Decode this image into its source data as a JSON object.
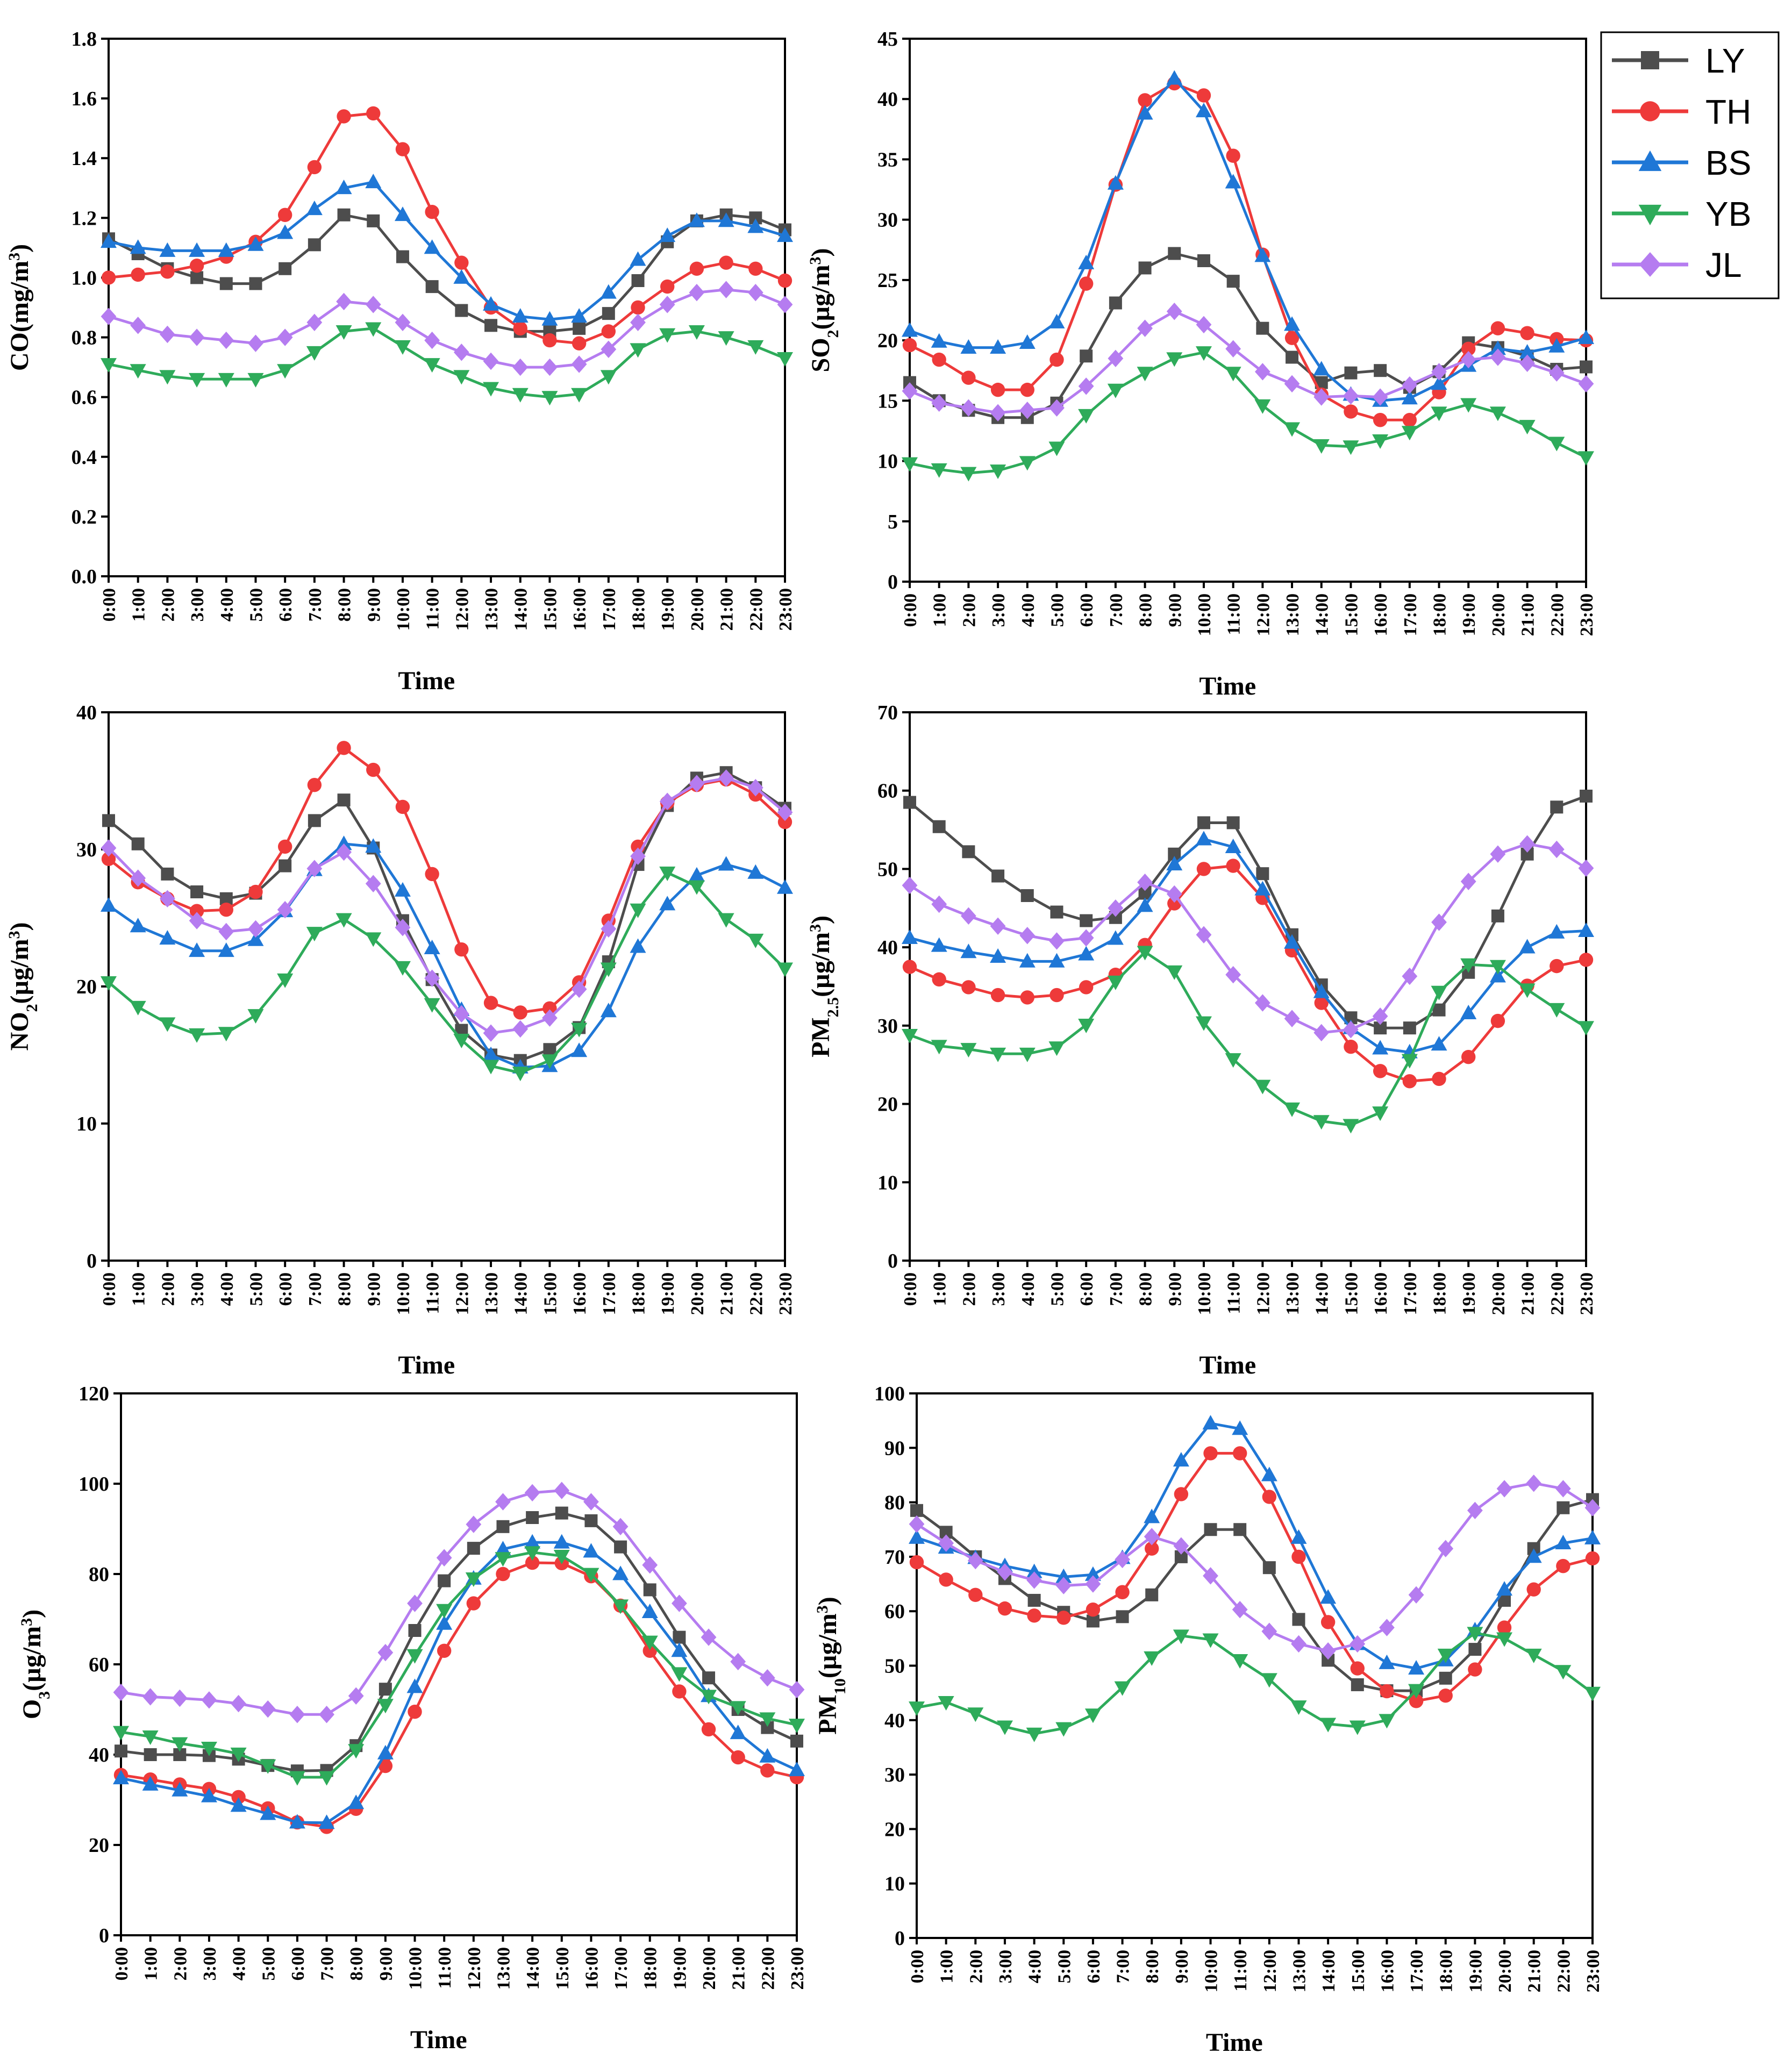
{
  "chart_data": [
    {
      "type": "line",
      "id": "co",
      "ylabel_main": "CO(mg/m",
      "ylabel_sup": "3",
      "ylabel_sub": "",
      "ylabel_end": ")",
      "xlabel": "Time",
      "ylim": [
        0,
        1.8
      ],
      "yticks": [
        "0.0",
        "0.2",
        "0.4",
        "0.6",
        "0.8",
        "1.0",
        "1.2",
        "1.4",
        "1.6",
        "1.8"
      ],
      "series": [
        {
          "name": "LY",
          "values": [
            1.13,
            1.08,
            1.03,
            1.0,
            0.98,
            0.98,
            1.03,
            1.11,
            1.21,
            1.19,
            1.07,
            0.97,
            0.89,
            0.84,
            0.82,
            0.82,
            0.83,
            0.88,
            0.99,
            1.12,
            1.19,
            1.21,
            1.2,
            1.16
          ]
        },
        {
          "name": "TH",
          "values": [
            1.0,
            1.01,
            1.02,
            1.04,
            1.07,
            1.12,
            1.21,
            1.37,
            1.54,
            1.55,
            1.43,
            1.22,
            1.05,
            0.9,
            0.83,
            0.79,
            0.78,
            0.82,
            0.9,
            0.97,
            1.03,
            1.05,
            1.03,
            0.99
          ]
        },
        {
          "name": "BS",
          "values": [
            1.12,
            1.1,
            1.09,
            1.09,
            1.09,
            1.11,
            1.15,
            1.23,
            1.3,
            1.32,
            1.21,
            1.1,
            1.0,
            0.91,
            0.87,
            0.86,
            0.87,
            0.95,
            1.06,
            1.14,
            1.19,
            1.19,
            1.17,
            1.14
          ]
        },
        {
          "name": "YB",
          "values": [
            0.71,
            0.69,
            0.67,
            0.66,
            0.66,
            0.66,
            0.69,
            0.75,
            0.82,
            0.83,
            0.77,
            0.71,
            0.67,
            0.63,
            0.61,
            0.6,
            0.61,
            0.67,
            0.76,
            0.81,
            0.82,
            0.8,
            0.77,
            0.73
          ]
        },
        {
          "name": "JL",
          "values": [
            0.87,
            0.84,
            0.81,
            0.8,
            0.79,
            0.78,
            0.8,
            0.85,
            0.92,
            0.91,
            0.85,
            0.79,
            0.75,
            0.72,
            0.7,
            0.7,
            0.71,
            0.76,
            0.85,
            0.91,
            0.95,
            0.96,
            0.95,
            0.91
          ]
        }
      ]
    },
    {
      "type": "line",
      "id": "so2",
      "ylabel_main": "SO",
      "ylabel_sub": "2",
      "ylabel_sup": "3",
      "ylabel_end": "(µg/m",
      "xlabel": "Time",
      "ylim": [
        0,
        45
      ],
      "yticks": [
        "0",
        "5",
        "10",
        "15",
        "20",
        "25",
        "30",
        "35",
        "40",
        "45"
      ],
      "series": [
        {
          "name": "LY",
          "values": [
            16.5,
            15.0,
            14.2,
            13.6,
            13.6,
            14.8,
            18.7,
            23.1,
            26.0,
            27.2,
            26.6,
            24.9,
            21.0,
            18.6,
            16.5,
            17.3,
            17.5,
            16.1,
            17.4,
            19.8,
            19.4,
            18.7,
            17.6,
            17.8
          ]
        },
        {
          "name": "TH",
          "values": [
            19.6,
            18.4,
            16.9,
            15.9,
            15.9,
            18.4,
            24.7,
            32.9,
            39.9,
            41.3,
            40.3,
            35.3,
            27.1,
            20.2,
            15.5,
            14.1,
            13.4,
            13.4,
            15.7,
            19.3,
            21.0,
            20.6,
            20.1,
            20.0
          ]
        },
        {
          "name": "BS",
          "values": [
            20.8,
            19.9,
            19.4,
            19.4,
            19.8,
            21.5,
            26.4,
            33.0,
            38.8,
            41.7,
            39.0,
            33.1,
            27.0,
            21.3,
            17.6,
            15.5,
            15.0,
            15.2,
            16.4,
            17.9,
            19.3,
            19.0,
            19.5,
            20.2
          ]
        },
        {
          "name": "YB",
          "values": [
            9.8,
            9.3,
            9.0,
            9.2,
            9.9,
            11.1,
            13.8,
            15.9,
            17.3,
            18.5,
            19.0,
            17.3,
            14.6,
            12.7,
            11.3,
            11.2,
            11.7,
            12.4,
            14.0,
            14.7,
            14.0,
            12.9,
            11.5,
            10.3
          ]
        },
        {
          "name": "JL",
          "values": [
            15.8,
            14.8,
            14.4,
            14.0,
            14.2,
            14.4,
            16.2,
            18.5,
            21.0,
            22.4,
            21.3,
            19.3,
            17.4,
            16.4,
            15.3,
            15.4,
            15.3,
            16.3,
            17.4,
            18.4,
            18.6,
            18.1,
            17.3,
            16.4
          ]
        }
      ]
    },
    {
      "type": "line",
      "id": "no2",
      "ylabel_main": "NO",
      "ylabel_sub": "2",
      "ylabel_sup": "3",
      "ylabel_end": "(µg/m",
      "xlabel": "Time",
      "ylim": [
        0,
        40
      ],
      "yticks": [
        "0",
        "10",
        "20",
        "30",
        "40"
      ],
      "series": [
        {
          "name": "LY",
          "values": [
            32.1,
            30.4,
            28.2,
            26.9,
            26.4,
            26.8,
            28.8,
            32.1,
            33.6,
            30.1,
            24.8,
            20.5,
            16.8,
            15.0,
            14.6,
            15.4,
            17.0,
            21.8,
            28.9,
            33.2,
            35.2,
            35.6,
            34.5,
            33.0
          ]
        },
        {
          "name": "TH",
          "values": [
            29.3,
            27.6,
            26.4,
            25.5,
            25.6,
            26.9,
            30.2,
            34.7,
            37.4,
            35.8,
            33.1,
            28.2,
            22.7,
            18.8,
            18.1,
            18.4,
            20.3,
            24.8,
            30.2,
            33.4,
            34.7,
            35.1,
            34.0,
            32.0
          ]
        },
        {
          "name": "BS",
          "values": [
            25.9,
            24.4,
            23.5,
            22.6,
            22.6,
            23.4,
            25.5,
            28.5,
            30.4,
            30.2,
            27.0,
            22.8,
            18.3,
            15.0,
            14.1,
            14.2,
            15.3,
            18.2,
            22.9,
            26.0,
            28.1,
            28.9,
            28.3,
            27.2
          ]
        },
        {
          "name": "YB",
          "values": [
            20.3,
            18.5,
            17.3,
            16.5,
            16.6,
            17.9,
            20.5,
            23.9,
            24.9,
            23.5,
            21.4,
            18.7,
            16.1,
            14.2,
            13.7,
            14.6,
            16.9,
            21.3,
            25.6,
            28.3,
            27.3,
            24.9,
            23.4,
            21.3
          ]
        },
        {
          "name": "JL",
          "values": [
            30.1,
            27.9,
            26.4,
            24.8,
            24.0,
            24.2,
            25.6,
            28.6,
            29.8,
            27.5,
            24.3,
            20.6,
            18.0,
            16.6,
            16.9,
            17.7,
            19.8,
            24.2,
            29.5,
            33.5,
            34.8,
            35.2,
            34.5,
            32.7
          ]
        }
      ]
    },
    {
      "type": "line",
      "id": "pm25",
      "ylabel_main": "PM",
      "ylabel_sub": "2.5",
      "ylabel_sup": "3",
      "ylabel_end": "(µg/m",
      "xlabel": "Time",
      "ylim": [
        0,
        70
      ],
      "yticks": [
        "0",
        "10",
        "20",
        "30",
        "40",
        "50",
        "60",
        "70"
      ],
      "series": [
        {
          "name": "LY",
          "values": [
            58.5,
            55.4,
            52.2,
            49.1,
            46.6,
            44.5,
            43.4,
            43.8,
            46.9,
            51.9,
            55.9,
            55.9,
            49.4,
            41.6,
            35.2,
            31.0,
            29.7,
            29.7,
            32.0,
            36.8,
            44.0,
            51.9,
            57.9,
            59.3
          ]
        },
        {
          "name": "TH",
          "values": [
            37.5,
            35.9,
            34.9,
            33.9,
            33.6,
            33.9,
            34.9,
            36.5,
            40.3,
            45.6,
            50.0,
            50.4,
            46.3,
            39.6,
            32.9,
            27.3,
            24.2,
            22.9,
            23.2,
            26.0,
            30.6,
            35.1,
            37.6,
            38.4
          ]
        },
        {
          "name": "BS",
          "values": [
            41.2,
            40.2,
            39.4,
            38.8,
            38.2,
            38.2,
            39.1,
            41.1,
            45.3,
            50.6,
            53.8,
            52.8,
            47.4,
            40.6,
            34.3,
            29.7,
            27.1,
            26.6,
            27.6,
            31.6,
            36.3,
            40.0,
            41.9,
            42.1
          ]
        },
        {
          "name": "YB",
          "values": [
            28.8,
            27.4,
            27.0,
            26.4,
            26.4,
            27.2,
            30.1,
            35.6,
            39.4,
            36.9,
            30.4,
            25.7,
            22.3,
            19.4,
            17.8,
            17.3,
            18.9,
            25.6,
            34.3,
            37.8,
            37.6,
            34.6,
            32.1,
            29.8
          ]
        },
        {
          "name": "JL",
          "values": [
            47.9,
            45.5,
            44.0,
            42.7,
            41.5,
            40.8,
            41.2,
            45.0,
            48.3,
            46.8,
            41.6,
            36.5,
            32.9,
            30.9,
            29.1,
            29.5,
            31.2,
            36.3,
            43.2,
            48.4,
            51.9,
            53.2,
            52.5,
            50.1
          ]
        }
      ]
    },
    {
      "type": "line",
      "id": "o3",
      "ylabel_main": "O",
      "ylabel_sub": "3",
      "ylabel_sup": "3",
      "ylabel_end": "(µg/m",
      "xlabel": "Time",
      "ylim": [
        0,
        120
      ],
      "yticks": [
        "0",
        "20",
        "40",
        "60",
        "80",
        "100",
        "120"
      ],
      "series": [
        {
          "name": "LY",
          "values": [
            40.8,
            40.0,
            40.0,
            39.8,
            39.0,
            37.6,
            36.4,
            36.5,
            42.0,
            54.5,
            67.5,
            78.5,
            85.7,
            90.5,
            92.5,
            93.5,
            91.8,
            86.0,
            76.5,
            66.0,
            57.0,
            50.0,
            46.0,
            43.0
          ]
        },
        {
          "name": "TH",
          "values": [
            35.5,
            34.5,
            33.4,
            32.4,
            30.6,
            28.1,
            25.0,
            24.0,
            28.0,
            37.5,
            49.5,
            63.0,
            73.5,
            80.0,
            82.5,
            82.4,
            79.5,
            73.0,
            63.0,
            54.0,
            45.6,
            39.4,
            36.5,
            35.0
          ]
        },
        {
          "name": "BS",
          "values": [
            34.8,
            33.4,
            32.1,
            30.8,
            28.7,
            26.9,
            25.0,
            24.9,
            29.3,
            40.3,
            55.0,
            69.0,
            79.0,
            85.5,
            87.0,
            87.0,
            85.0,
            80.0,
            71.6,
            63.0,
            53.0,
            44.8,
            39.6,
            36.6
          ]
        },
        {
          "name": "YB",
          "values": [
            45.0,
            44.0,
            42.5,
            41.5,
            40.2,
            37.6,
            35.0,
            35.0,
            41.0,
            51.0,
            62.0,
            72.0,
            79.0,
            83.5,
            84.8,
            84.0,
            80.0,
            73.0,
            65.0,
            58.0,
            53.0,
            50.5,
            48.0,
            46.6
          ]
        },
        {
          "name": "JL",
          "values": [
            53.8,
            52.8,
            52.5,
            52.1,
            51.3,
            50.1,
            48.9,
            48.9,
            53.0,
            62.6,
            73.5,
            83.6,
            91.0,
            96.0,
            98.0,
            98.5,
            96.0,
            90.5,
            82.0,
            73.5,
            66.0,
            60.6,
            57.0,
            54.4
          ]
        }
      ]
    },
    {
      "type": "line",
      "id": "pm10",
      "ylabel_main": "PM",
      "ylabel_sub": "10",
      "ylabel_sup": "3",
      "ylabel_end": "(µg/m",
      "xlabel": "Time",
      "ylim": [
        0,
        100
      ],
      "yticks": [
        "0",
        "10",
        "20",
        "30",
        "40",
        "50",
        "60",
        "70",
        "80",
        "90",
        "100"
      ],
      "series": [
        {
          "name": "LY",
          "values": [
            78.5,
            74.5,
            70.0,
            66.0,
            62.0,
            59.8,
            58.2,
            59.0,
            63.0,
            70.0,
            75.0,
            75.0,
            68.0,
            58.5,
            51.0,
            46.5,
            45.4,
            45.4,
            47.7,
            53.0,
            62.0,
            71.5,
            79.0,
            80.5
          ]
        },
        {
          "name": "TH",
          "values": [
            69.0,
            65.8,
            63.0,
            60.5,
            59.2,
            58.8,
            60.3,
            63.5,
            71.5,
            81.5,
            89.0,
            89.0,
            81.0,
            70.0,
            58.0,
            49.5,
            45.3,
            43.5,
            44.5,
            49.3,
            57.0,
            64.0,
            68.3,
            69.7
          ]
        },
        {
          "name": "BS",
          "values": [
            73.5,
            71.7,
            69.8,
            68.3,
            67.2,
            66.3,
            66.7,
            69.8,
            77.3,
            87.7,
            94.5,
            93.5,
            85.0,
            73.5,
            62.5,
            54.0,
            50.5,
            49.5,
            51.0,
            56.5,
            64.0,
            70.0,
            72.5,
            73.4
          ]
        },
        {
          "name": "YB",
          "values": [
            42.3,
            43.3,
            41.2,
            38.8,
            37.5,
            38.5,
            41.0,
            46.0,
            51.5,
            55.5,
            54.8,
            51.0,
            47.5,
            42.5,
            39.3,
            38.8,
            40.0,
            45.5,
            52.0,
            56.0,
            55.0,
            52.0,
            49.0,
            45.0
          ]
        },
        {
          "name": "JL",
          "values": [
            76.0,
            72.5,
            69.3,
            67.2,
            65.7,
            64.7,
            65.0,
            69.5,
            73.7,
            72.0,
            66.5,
            60.3,
            56.3,
            54.0,
            52.7,
            54.0,
            57.0,
            63.0,
            71.5,
            78.5,
            82.5,
            83.5,
            82.5,
            79.0
          ]
        }
      ]
    }
  ],
  "x_labels": [
    "0:00",
    "1:00",
    "2:00",
    "3:00",
    "4:00",
    "5:00",
    "6:00",
    "7:00",
    "8:00",
    "9:00",
    "10:00",
    "11:00",
    "12:00",
    "13:00",
    "14:00",
    "15:00",
    "16:00",
    "17:00",
    "18:00",
    "19:00",
    "20:00",
    "21:00",
    "22:00",
    "23:00"
  ],
  "legend": [
    {
      "name": "LY",
      "color": "#4d4d4d",
      "marker": "square"
    },
    {
      "name": "TH",
      "color": "#ee3a3a",
      "marker": "circle"
    },
    {
      "name": "BS",
      "color": "#1f77d6",
      "marker": "triangle-up"
    },
    {
      "name": "YB",
      "color": "#2eab5a",
      "marker": "triangle-down"
    },
    {
      "name": "JL",
      "color": "#b57cf0",
      "marker": "diamond"
    }
  ]
}
